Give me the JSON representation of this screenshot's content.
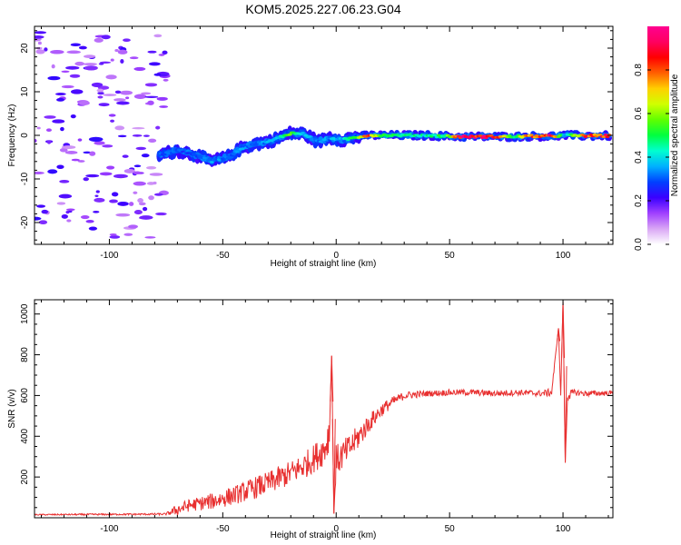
{
  "title": "KOM5.2025.227.06.23.G04",
  "chart_data": [
    {
      "type": "heatmap",
      "name": "spectrogram",
      "xlabel": "Height of straight line (km)",
      "ylabel": "Frequency (Hz)",
      "xlim": [
        -133,
        122
      ],
      "ylim": [
        -25,
        25
      ],
      "xticks": [
        -100,
        -50,
        0,
        50,
        100
      ],
      "xtick_labels": [
        "-100",
        "-50",
        "0",
        "50",
        "100"
      ],
      "yticks": [
        -20,
        -10,
        0,
        10,
        20
      ],
      "ytick_labels": [
        "-20",
        "-10",
        "0",
        "10",
        "20"
      ],
      "colorbar": {
        "label": "Normalized spectral amplitude",
        "range": [
          0,
          1
        ],
        "ticks": [
          0.0,
          0.2,
          0.4,
          0.6,
          0.8
        ],
        "tick_labels": [
          "0.0",
          "0.2",
          "0.4",
          "0.6",
          "0.8"
        ],
        "colors": [
          "#ffffff",
          "#d9a6f5",
          "#a040ff",
          "#3a00ff",
          "#0040ff",
          "#00b0ff",
          "#00ffd0",
          "#00ff40",
          "#60ff00",
          "#d0ff00",
          "#ffd000",
          "#ff6000",
          "#ff0000",
          "#ff0060",
          "#ff0090"
        ]
      },
      "ridge": [
        {
          "x": -78,
          "y": -4.5,
          "a": 0.3
        },
        {
          "x": -70,
          "y": -3.5,
          "a": 0.3
        },
        {
          "x": -62,
          "y": -4.5,
          "a": 0.3
        },
        {
          "x": -55,
          "y": -6,
          "a": 0.35
        },
        {
          "x": -48,
          "y": -5,
          "a": 0.3
        },
        {
          "x": -42,
          "y": -3,
          "a": 0.35
        },
        {
          "x": -36,
          "y": -2,
          "a": 0.3
        },
        {
          "x": -30,
          "y": -1.5,
          "a": 0.35
        },
        {
          "x": -25,
          "y": -0.5,
          "a": 0.4
        },
        {
          "x": -20,
          "y": 0.5,
          "a": 0.6
        },
        {
          "x": -14,
          "y": 0.3,
          "a": 0.4
        },
        {
          "x": -8,
          "y": -1.5,
          "a": 0.35
        },
        {
          "x": -3,
          "y": -0.5,
          "a": 0.35
        },
        {
          "x": 3,
          "y": -1,
          "a": 0.4
        },
        {
          "x": 8,
          "y": -0.5,
          "a": 0.5
        },
        {
          "x": 14,
          "y": 0,
          "a": 0.85
        },
        {
          "x": 20,
          "y": 0,
          "a": 0.5
        },
        {
          "x": 30,
          "y": 0,
          "a": 0.45
        },
        {
          "x": 40,
          "y": 0,
          "a": 0.45
        },
        {
          "x": 48,
          "y": -0.2,
          "a": 0.5
        },
        {
          "x": 55,
          "y": -0.3,
          "a": 0.9
        },
        {
          "x": 65,
          "y": -0.3,
          "a": 0.9
        },
        {
          "x": 72,
          "y": -0.3,
          "a": 0.8
        },
        {
          "x": 78,
          "y": -0.3,
          "a": 0.5
        },
        {
          "x": 86,
          "y": -0.2,
          "a": 0.85
        },
        {
          "x": 95,
          "y": -0.2,
          "a": 0.9
        },
        {
          "x": 101,
          "y": 0,
          "a": 0.35
        },
        {
          "x": 110,
          "y": -0.1,
          "a": 0.85
        },
        {
          "x": 121,
          "y": -0.1,
          "a": 0.85
        }
      ]
    },
    {
      "type": "line",
      "name": "snr",
      "xlabel": "Height of straight line (km)",
      "ylabel": "SNR (v/v)",
      "xlim": [
        -133,
        122
      ],
      "ylim": [
        0,
        1070
      ],
      "xticks": [
        -100,
        -50,
        0,
        50,
        100
      ],
      "xtick_labels": [
        "-100",
        "-50",
        "0",
        "50",
        "100"
      ],
      "yticks": [
        200,
        400,
        600,
        800,
        1000
      ],
      "ytick_labels": [
        "200",
        "400",
        "600",
        "800",
        "1000"
      ],
      "color": "#e83030",
      "x": [
        -133,
        -110,
        -90,
        -75,
        -70,
        -65,
        -60,
        -55,
        -50,
        -45,
        -40,
        -35,
        -30,
        -25,
        -20,
        -15,
        -10,
        -5,
        -3,
        -2,
        -1,
        0,
        5,
        10,
        15,
        20,
        25,
        30,
        40,
        50,
        60,
        70,
        80,
        90,
        95,
        98,
        99,
        100,
        101,
        102,
        105,
        110,
        122
      ],
      "values": [
        15,
        16,
        17,
        18,
        40,
        60,
        70,
        80,
        95,
        110,
        130,
        150,
        170,
        195,
        220,
        250,
        290,
        340,
        420,
        795,
        20,
        280,
        330,
        400,
        470,
        530,
        570,
        600,
        610,
        615,
        615,
        610,
        615,
        610,
        615,
        930,
        600,
        1060,
        270,
        600,
        615,
        610,
        612
      ],
      "noise_amp": [
        3,
        4,
        4,
        5,
        30,
        30,
        35,
        40,
        45,
        45,
        50,
        55,
        55,
        60,
        60,
        65,
        70,
        80,
        100,
        0,
        0,
        80,
        70,
        60,
        45,
        35,
        25,
        20,
        15,
        15,
        15,
        15,
        15,
        15,
        20,
        0,
        0,
        0,
        0,
        30,
        15,
        15,
        12
      ]
    }
  ]
}
